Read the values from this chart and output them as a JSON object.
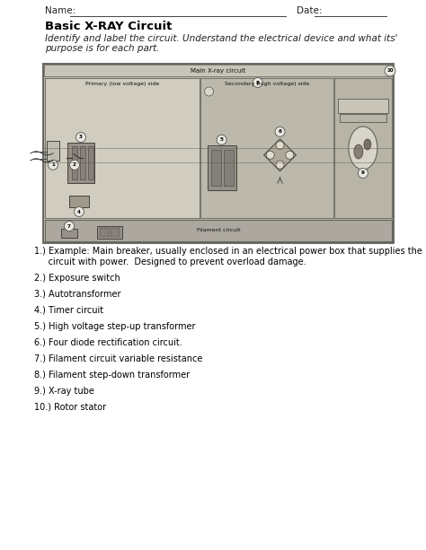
{
  "title": "Basic X-RAY Circuit",
  "subtitle_line1": "Identify and label the circuit. Understand the electrical device and what its'",
  "subtitle_line2": "purpose is for each part.",
  "items": [
    "1.) Example: Main breaker, usually enclosed in an electrical power box that supplies the",
    "     circuit with power.  Designed to prevent overload damage.",
    "2.) Exposure switch",
    "3.) Autotransformer",
    "4.) Timer circuit",
    "5.) High voltage step-up transformer",
    "6.) Four diode rectification circuit.",
    "7.) Filament circuit variable resistance",
    "8.) Filament step-down transformer",
    "9.) X-ray tube",
    "10.) Rotor stator"
  ],
  "circuit": {
    "outer_bg": "#b8b4a8",
    "main_circuit_bg": "#c8c4b8",
    "primary_bg": "#d4d0c4",
    "secondary_bg": "#c0bcb0",
    "filament_bg": "#b4b0a4",
    "label_bar_bg": "#c4c0b4"
  }
}
